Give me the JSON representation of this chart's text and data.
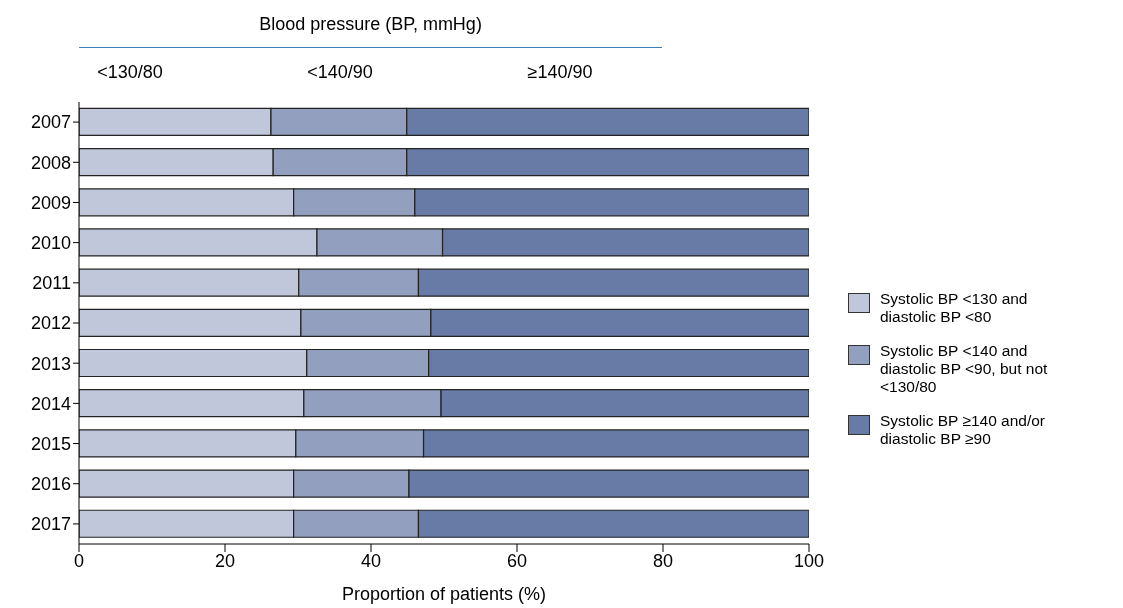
{
  "chart_data": {
    "type": "bar",
    "orientation": "horizontal",
    "stacked": true,
    "title": "Blood pressure (BP, mmHg)",
    "annotations": [
      "<130/80",
      "<140/90",
      "≥140/90"
    ],
    "xlabel": "Proportion of patients (%)",
    "categories": [
      "2007",
      "2008",
      "2009",
      "2010",
      "2011",
      "2012",
      "2013",
      "2014",
      "2015",
      "2016",
      "2017"
    ],
    "series": [
      {
        "name": "Systolic BP <130 and diastolic BP <80",
        "color": "#c1c7db",
        "values": [
          26.3,
          26.6,
          29.4,
          32.6,
          30.1,
          30.4,
          31.2,
          30.8,
          29.7,
          29.4,
          29.4
        ]
      },
      {
        "name": "Systolic BP <140 and diastolic BP <90, but not <130/80",
        "color": "#929fbf",
        "values": [
          18.6,
          18.3,
          16.6,
          17.2,
          16.4,
          17.8,
          16.7,
          18.8,
          17.5,
          15.8,
          17.1
        ]
      },
      {
        "name": "Systolic BP ≥140 and/or diastolic BP ≥90",
        "color": "#677ba6",
        "values": [
          55.1,
          55.1,
          54.0,
          50.2,
          53.5,
          51.8,
          52.1,
          50.4,
          52.8,
          54.8,
          53.5
        ]
      }
    ],
    "xlim": [
      0,
      100
    ],
    "xticks": [
      0,
      20,
      40,
      60,
      80,
      100
    ],
    "grid": false,
    "legend": "right"
  }
}
